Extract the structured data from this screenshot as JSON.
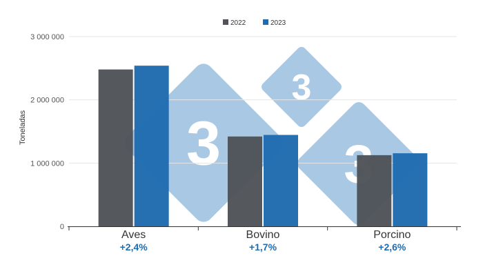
{
  "chart_data": {
    "type": "bar",
    "categories": [
      "Aves",
      "Bovino",
      "Porcino"
    ],
    "series": [
      {
        "name": "2022",
        "values": [
          2480000,
          1420000,
          1125000
        ],
        "color": "#505358"
      },
      {
        "name": "2023",
        "values": [
          2540000,
          1445000,
          1155000
        ],
        "color": "#1f6bb0"
      }
    ],
    "growth_labels": [
      "+2,4%",
      "+1,7%",
      "+2,6%"
    ],
    "growth_color": "#1f6bb0",
    "ylabel": "Toneladas",
    "ylim": [
      0,
      3000000
    ],
    "yticks": [
      {
        "value": 0,
        "label": "0"
      },
      {
        "value": 1000000,
        "label": "1 000 000"
      },
      {
        "value": 2000000,
        "label": "2 000 000"
      },
      {
        "value": 3000000,
        "label": "3 000 000"
      }
    ],
    "grid": true,
    "legend_position": "top-center"
  },
  "watermark": {
    "text": "3",
    "color": "#a9c8e4"
  }
}
